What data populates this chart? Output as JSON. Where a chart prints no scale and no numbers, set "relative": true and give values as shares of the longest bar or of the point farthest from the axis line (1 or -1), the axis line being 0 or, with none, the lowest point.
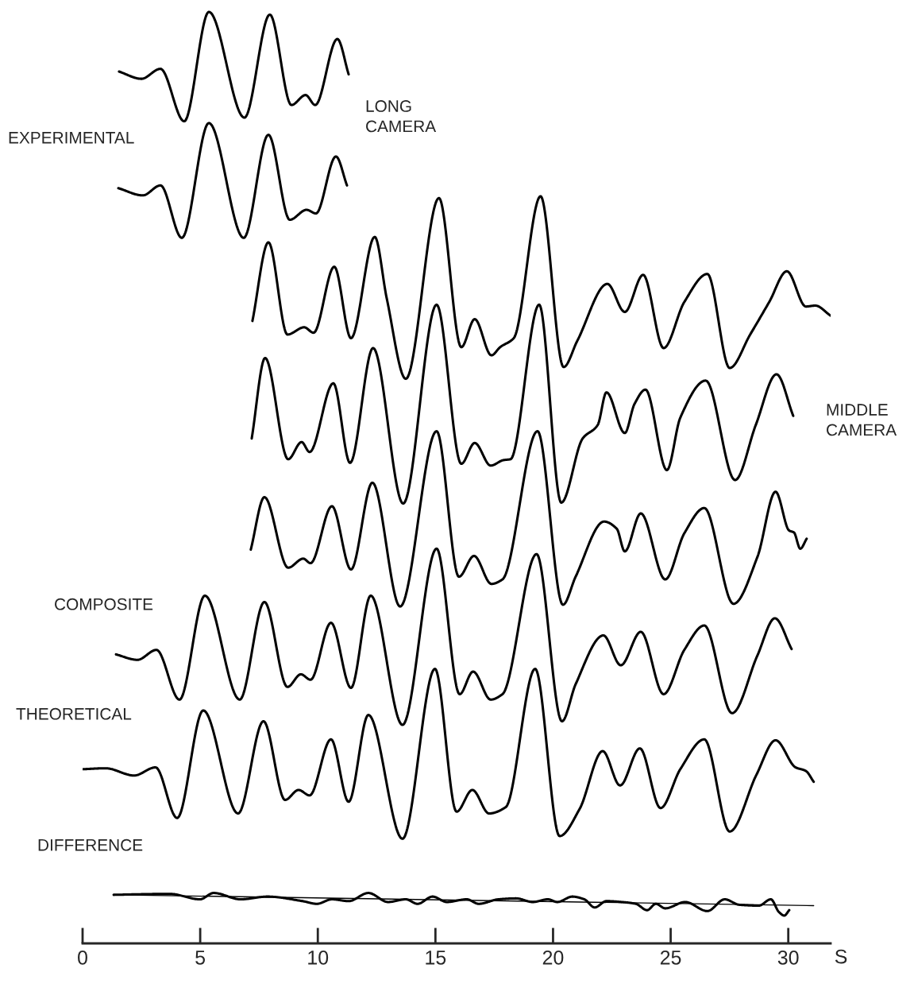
{
  "chart_data": {
    "type": "line",
    "relative": true,
    "xlabel": "S",
    "xlim": [
      0,
      31.8
    ],
    "xticks": [
      0,
      5,
      10,
      15,
      20,
      25,
      30
    ],
    "tick_labels": "x",
    "grid": false,
    "legend": false,
    "marker": "none",
    "line_style": "solid",
    "annotations": [
      "EXPERIMENTAL",
      "LONG\nCAMERA",
      "MIDDLE\nCAMERA",
      "COMPOSITE",
      "THEORETICAL",
      "DIFFERENCE"
    ],
    "series": [
      {
        "color": "#000000",
        "x": [
          1.55,
          2.5,
          3.31,
          4.32,
          5.37,
          6.88,
          7.96,
          8.88,
          9.48,
          9.89,
          10.83,
          11.31
        ],
        "values": [
          0.934,
          0.926,
          0.937,
          0.879,
          1.0,
          0.883,
          0.997,
          0.897,
          0.908,
          0.897,
          0.97,
          0.931
        ]
      },
      {
        "color": "#000000",
        "x": [
          1.52,
          2.56,
          3.31,
          4.22,
          5.37,
          6.85,
          7.9,
          8.81,
          9.52,
          9.92,
          10.77,
          11.24
        ],
        "values": [
          0.805,
          0.797,
          0.808,
          0.75,
          0.877,
          0.75,
          0.864,
          0.77,
          0.781,
          0.777,
          0.84,
          0.808
        ]
      },
      {
        "color": "#000000",
        "x": [
          7.22,
          7.9,
          8.71,
          9.42,
          9.82,
          10.7,
          11.41,
          12.42,
          12.93,
          13.74,
          15.15,
          16.1,
          16.67,
          17.38,
          17.75,
          18.33,
          19.47,
          20.45,
          21.03,
          22.31,
          23.05,
          23.83,
          24.7,
          25.58,
          26.56,
          27.51,
          28.38,
          29.19,
          29.94,
          30.75,
          31.15,
          31.79
        ],
        "values": [
          0.658,
          0.745,
          0.643,
          0.651,
          0.645,
          0.718,
          0.639,
          0.751,
          0.683,
          0.594,
          0.794,
          0.629,
          0.66,
          0.62,
          0.629,
          0.639,
          0.796,
          0.607,
          0.636,
          0.699,
          0.668,
          0.709,
          0.628,
          0.679,
          0.71,
          0.606,
          0.643,
          0.679,
          0.713,
          0.674,
          0.675,
          0.664
        ]
      },
      {
        "color": "#000000",
        "x": [
          7.19,
          7.76,
          8.74,
          9.31,
          9.65,
          10.66,
          11.37,
          12.35,
          13.63,
          15.05,
          16.1,
          16.67,
          17.35,
          17.89,
          18.19,
          19.41,
          20.35,
          21.26,
          21.9,
          22.27,
          23.05,
          23.46,
          23.93,
          24.84,
          25.41,
          26.49,
          27.74,
          28.62,
          29.5,
          30.21
        ],
        "values": [
          0.528,
          0.617,
          0.505,
          0.524,
          0.513,
          0.589,
          0.501,
          0.628,
          0.456,
          0.676,
          0.5,
          0.523,
          0.498,
          0.504,
          0.505,
          0.676,
          0.457,
          0.528,
          0.543,
          0.579,
          0.534,
          0.566,
          0.582,
          0.493,
          0.551,
          0.592,
          0.482,
          0.543,
          0.599,
          0.553
        ]
      },
      {
        "color": "#000000",
        "x": [
          7.15,
          7.73,
          8.74,
          9.38,
          9.69,
          10.6,
          11.41,
          12.32,
          13.5,
          15.05,
          16.0,
          16.64,
          17.38,
          17.85,
          19.34,
          20.42,
          20.96,
          22.17,
          22.71,
          23.05,
          23.73,
          24.77,
          25.58,
          26.43,
          27.67,
          28.69,
          29.46,
          30.04,
          30.24,
          30.51,
          30.78
        ],
        "values": [
          0.405,
          0.463,
          0.385,
          0.395,
          0.39,
          0.453,
          0.383,
          0.479,
          0.342,
          0.536,
          0.375,
          0.398,
          0.367,
          0.372,
          0.536,
          0.344,
          0.375,
          0.436,
          0.428,
          0.403,
          0.445,
          0.372,
          0.423,
          0.451,
          0.345,
          0.397,
          0.469,
          0.426,
          0.424,
          0.406,
          0.417
        ]
      },
      {
        "color": "#000000",
        "x": [
          1.42,
          2.33,
          3.14,
          4.12,
          5.2,
          6.68,
          7.73,
          8.71,
          9.28,
          9.69,
          10.56,
          11.41,
          12.25,
          13.6,
          15.05,
          16.03,
          16.6,
          17.35,
          17.85,
          19.3,
          20.38,
          20.96,
          22.14,
          22.88,
          23.73,
          24.7,
          25.58,
          26.43,
          27.61,
          28.69,
          29.43,
          30.14
        ],
        "values": [
          0.289,
          0.283,
          0.294,
          0.239,
          0.354,
          0.239,
          0.347,
          0.253,
          0.267,
          0.261,
          0.324,
          0.252,
          0.354,
          0.211,
          0.406,
          0.245,
          0.27,
          0.239,
          0.245,
          0.4,
          0.215,
          0.256,
          0.31,
          0.277,
          0.314,
          0.245,
          0.294,
          0.321,
          0.224,
          0.288,
          0.329,
          0.295
        ]
      },
      {
        "color": "#000000",
        "x": [
          0.03,
          0.98,
          2.19,
          3.1,
          4.02,
          5.13,
          6.61,
          7.69,
          8.61,
          9.18,
          9.65,
          10.56,
          11.31,
          12.15,
          13.6,
          14.98,
          15.9,
          16.57,
          17.28,
          17.99,
          19.24,
          20.28,
          21.13,
          22.11,
          22.85,
          23.69,
          24.57,
          25.41,
          26.43,
          27.51,
          28.65,
          29.46,
          30.31,
          30.75,
          31.08
        ],
        "values": [
          0.162,
          0.163,
          0.155,
          0.164,
          0.108,
          0.227,
          0.113,
          0.215,
          0.128,
          0.139,
          0.133,
          0.195,
          0.126,
          0.222,
          0.085,
          0.273,
          0.115,
          0.139,
          0.113,
          0.12,
          0.273,
          0.088,
          0.118,
          0.182,
          0.144,
          0.185,
          0.119,
          0.162,
          0.195,
          0.093,
          0.156,
          0.194,
          0.164,
          0.16,
          0.148
        ]
      },
      {
        "color": "#000000",
        "x": [
          1.32,
          3.71,
          4.99,
          5.57,
          6.72,
          7.86,
          9.35,
          9.96,
          10.6,
          11.31,
          12.15,
          12.99,
          13.74,
          14.24,
          14.88,
          15.49,
          16.33,
          16.84,
          17.68,
          18.43,
          19.14,
          19.78,
          20.18,
          20.82,
          21.33,
          21.77,
          22.27,
          22.92,
          23.52,
          24.0,
          24.37,
          24.77,
          25.62,
          26.56,
          27.3,
          27.91,
          28.75,
          29.26,
          29.6,
          29.83,
          30.04
        ],
        "values": [
          0.023,
          0.024,
          0.018,
          0.025,
          0.018,
          0.021,
          0.016,
          0.013,
          0.018,
          0.016,
          0.025,
          0.015,
          0.018,
          0.013,
          0.021,
          0.015,
          0.018,
          0.013,
          0.018,
          0.019,
          0.015,
          0.018,
          0.015,
          0.021,
          0.018,
          0.009,
          0.016,
          0.015,
          0.013,
          0.006,
          0.013,
          0.008,
          0.015,
          0.005,
          0.018,
          0.012,
          0.011,
          0.018,
          0.004,
          0.0,
          0.006
        ]
      },
      {
        "color": "#000000",
        "x": [
          1.32,
          31.08
        ],
        "values": [
          0.023,
          0.011
        ]
      }
    ]
  }
}
